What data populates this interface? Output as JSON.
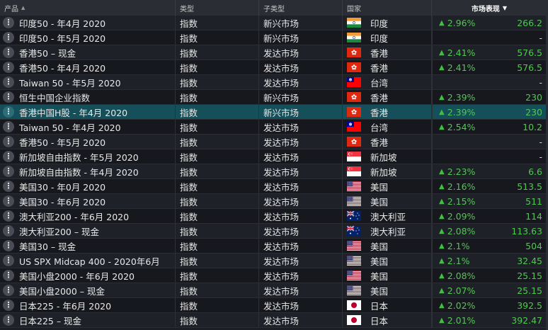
{
  "columns": {
    "product": "产品",
    "type": "类型",
    "subtype": "子类型",
    "country": "国家",
    "performance": "市场表现"
  },
  "colors": {
    "up": "#4fc94f",
    "selected_row": "#15505a",
    "header_bg": "#2a2d33"
  },
  "rows": [
    {
      "name": "印度50 - 年4月 2020",
      "type": "指数",
      "subtype": "新兴市场",
      "flag": "india-flag",
      "country": "印度",
      "pct": "2.96%",
      "value": "266.2",
      "up": true
    },
    {
      "name": "印度50 - 年5月 2020",
      "type": "指数",
      "subtype": "新兴市场",
      "flag": "india-flag",
      "country": "印度",
      "pct": "",
      "value": "-",
      "up": false
    },
    {
      "name": "香港50 – 现金",
      "type": "指数",
      "subtype": "发达市场",
      "flag": "hongkong-flag",
      "country": "香港",
      "pct": "2.41%",
      "value": "576.5",
      "up": true
    },
    {
      "name": "香港50 - 年4月 2020",
      "type": "指数",
      "subtype": "发达市场",
      "flag": "hongkong-flag",
      "country": "香港",
      "pct": "2.41%",
      "value": "576.5",
      "up": true
    },
    {
      "name": "Taiwan 50 - 年5月 2020",
      "type": "指数",
      "subtype": "发达市场",
      "flag": "taiwan-flag",
      "country": "台湾",
      "pct": "",
      "value": "-",
      "up": false
    },
    {
      "name": "恒生中国企业指数",
      "type": "指数",
      "subtype": "新兴市场",
      "flag": "hongkong-flag",
      "country": "香港",
      "pct": "2.39%",
      "value": "230",
      "up": true
    },
    {
      "name": "香港中国H股 - 年4月 2020",
      "type": "指数",
      "subtype": "新兴市场",
      "flag": "hongkong-flag",
      "country": "香港",
      "pct": "2.39%",
      "value": "230",
      "up": true,
      "selected": true
    },
    {
      "name": "Taiwan 50 - 年4月 2020",
      "type": "指数",
      "subtype": "发达市场",
      "flag": "taiwan-flag",
      "country": "台湾",
      "pct": "2.54%",
      "value": "10.2",
      "up": true
    },
    {
      "name": "香港50 - 年5月 2020",
      "type": "指数",
      "subtype": "发达市场",
      "flag": "hongkong-flag",
      "country": "香港",
      "pct": "",
      "value": "-",
      "up": false
    },
    {
      "name": "新加坡自由指数 - 年5月 2020",
      "type": "指数",
      "subtype": "发达市场",
      "flag": "singapore-flag",
      "country": "新加坡",
      "pct": "",
      "value": "-",
      "up": false
    },
    {
      "name": "新加坡自由指数 - 年4月 2020",
      "type": "指数",
      "subtype": "发达市场",
      "flag": "singapore-flag",
      "country": "新加坡",
      "pct": "2.23%",
      "value": "6.6",
      "up": true
    },
    {
      "name": "美国30 - 年0月 2020",
      "type": "指数",
      "subtype": "发达市场",
      "flag": "usa-flag",
      "country": "美国",
      "pct": "2.16%",
      "value": "513.5",
      "up": true
    },
    {
      "name": "美国30 - 年6月 2020",
      "type": "指数",
      "subtype": "发达市场",
      "flag": "usa-flag",
      "country": "美国",
      "pct": "2.15%",
      "value": "511",
      "up": true
    },
    {
      "name": "澳大利亚200 - 年6月 2020",
      "type": "指数",
      "subtype": "发达市场",
      "flag": "australia-flag",
      "country": "澳大利亚",
      "pct": "2.09%",
      "value": "114",
      "up": true
    },
    {
      "name": "澳大利亚200 – 现金",
      "type": "指数",
      "subtype": "发达市场",
      "flag": "australia-flag",
      "country": "澳大利亚",
      "pct": "2.08%",
      "value": "113.63",
      "up": true
    },
    {
      "name": "美国30 – 现金",
      "type": "指数",
      "subtype": "发达市场",
      "flag": "usa-flag",
      "country": "美国",
      "pct": "2.1%",
      "value": "504",
      "up": true
    },
    {
      "name": "US SPX Midcap 400 - 2020年6月",
      "type": "指数",
      "subtype": "发达市场",
      "flag": "usa-flag",
      "country": "美国",
      "pct": "2.1%",
      "value": "32.45",
      "up": true
    },
    {
      "name": "美国小盘2000 - 年6月 2020",
      "type": "指数",
      "subtype": "发达市场",
      "flag": "usa-flag",
      "country": "美国",
      "pct": "2.08%",
      "value": "25.15",
      "up": true
    },
    {
      "name": "美国小盘2000 – 现金",
      "type": "指数",
      "subtype": "发达市场",
      "flag": "usa-flag",
      "country": "美国",
      "pct": "2.07%",
      "value": "25.15",
      "up": true
    },
    {
      "name": "日本225 - 年6月 2020",
      "type": "指数",
      "subtype": "发达市场",
      "flag": "japan-flag",
      "country": "日本",
      "pct": "2.02%",
      "value": "392.5",
      "up": true
    },
    {
      "name": "日本225 – 现金",
      "type": "指数",
      "subtype": "发达市场",
      "flag": "japan-flag",
      "country": "日本",
      "pct": "2.01%",
      "value": "392.47",
      "up": true
    }
  ]
}
